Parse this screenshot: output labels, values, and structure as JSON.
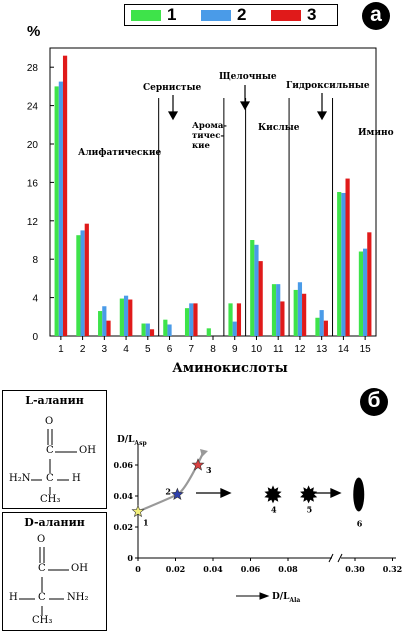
{
  "badges": {
    "a": "а",
    "b": "б"
  },
  "colors": {
    "s1": "#3ee34a",
    "s2": "#4a9be8",
    "s3": "#e01a1a"
  },
  "chart_data": [
    {
      "type": "bar",
      "ylabel": "%",
      "xlabel": "Аминокислоты",
      "ylim": [
        0,
        30
      ],
      "yticks": [
        0,
        4,
        8,
        12,
        16,
        20,
        24,
        28
      ],
      "categories": [
        "1",
        "2",
        "3",
        "4",
        "5",
        "6",
        "7",
        "8",
        "9",
        "10",
        "11",
        "12",
        "13",
        "14",
        "15"
      ],
      "series": [
        {
          "name": "1",
          "values": [
            26.0,
            10.5,
            2.6,
            3.9,
            1.3,
            1.7,
            2.9,
            0.8,
            3.4,
            10.0,
            5.4,
            4.8,
            1.9,
            15.0,
            8.8
          ]
        },
        {
          "name": "2",
          "values": [
            26.5,
            11.0,
            3.1,
            4.2,
            1.3,
            1.2,
            3.4,
            0.0,
            1.5,
            9.5,
            5.4,
            5.6,
            2.7,
            14.9,
            9.1
          ]
        },
        {
          "name": "3",
          "values": [
            29.2,
            11.7,
            1.6,
            3.8,
            0.7,
            0.0,
            3.4,
            0.0,
            3.4,
            7.8,
            3.6,
            4.4,
            1.6,
            16.4,
            10.8
          ]
        }
      ],
      "separators_after": [
        5,
        8,
        9,
        11,
        13
      ],
      "groups": [
        {
          "label": "Алифатические"
        },
        {
          "label": "Сернистые"
        },
        {
          "label": "Арома-"
        },
        {
          "label": "тичес-"
        },
        {
          "label": "кие"
        },
        {
          "label": "Щелочные"
        },
        {
          "label": "Кислые"
        },
        {
          "label": "Гидроксильные"
        },
        {
          "label": "Имино"
        }
      ]
    },
    {
      "type": "scatter",
      "ylabel_main": "D/L",
      "ylabel_sub": "Asp",
      "xlabel_main": "D/L",
      "xlabel_sub": "Ala",
      "xticks_left": [
        "0",
        "0.02",
        "0.04",
        "0.06",
        "0.08"
      ],
      "xticks_right": [
        "0.30",
        "0.32"
      ],
      "yticks": [
        "0",
        "0.02",
        "0.04",
        "0.06"
      ],
      "points": [
        {
          "label": "1",
          "x": 0.0,
          "y": 0.03,
          "marker": "star",
          "color": "#f2ef7a"
        },
        {
          "label": "2",
          "x": 0.021,
          "y": 0.041,
          "marker": "star",
          "color": "#2d3fae"
        },
        {
          "label": "3",
          "x": 0.032,
          "y": 0.06,
          "marker": "star",
          "color": "#d94040"
        },
        {
          "label": "4",
          "x": 0.072,
          "y": 0.041,
          "marker": "burst",
          "color": "#000000"
        },
        {
          "label": "5",
          "x": 0.091,
          "y": 0.041,
          "marker": "burst",
          "color": "#000000"
        },
        {
          "label": "6",
          "x": 0.302,
          "y": 0.041,
          "marker": "ellipse",
          "color": "#000000"
        }
      ]
    }
  ],
  "structures": {
    "l_title": "L-аланин",
    "d_title": "D-аланин",
    "O": "O",
    "C": "C",
    "OH": "OH",
    "H2N": "H₂N",
    "H": "H",
    "CH3": "CH₃",
    "NH2": "NH₂"
  }
}
